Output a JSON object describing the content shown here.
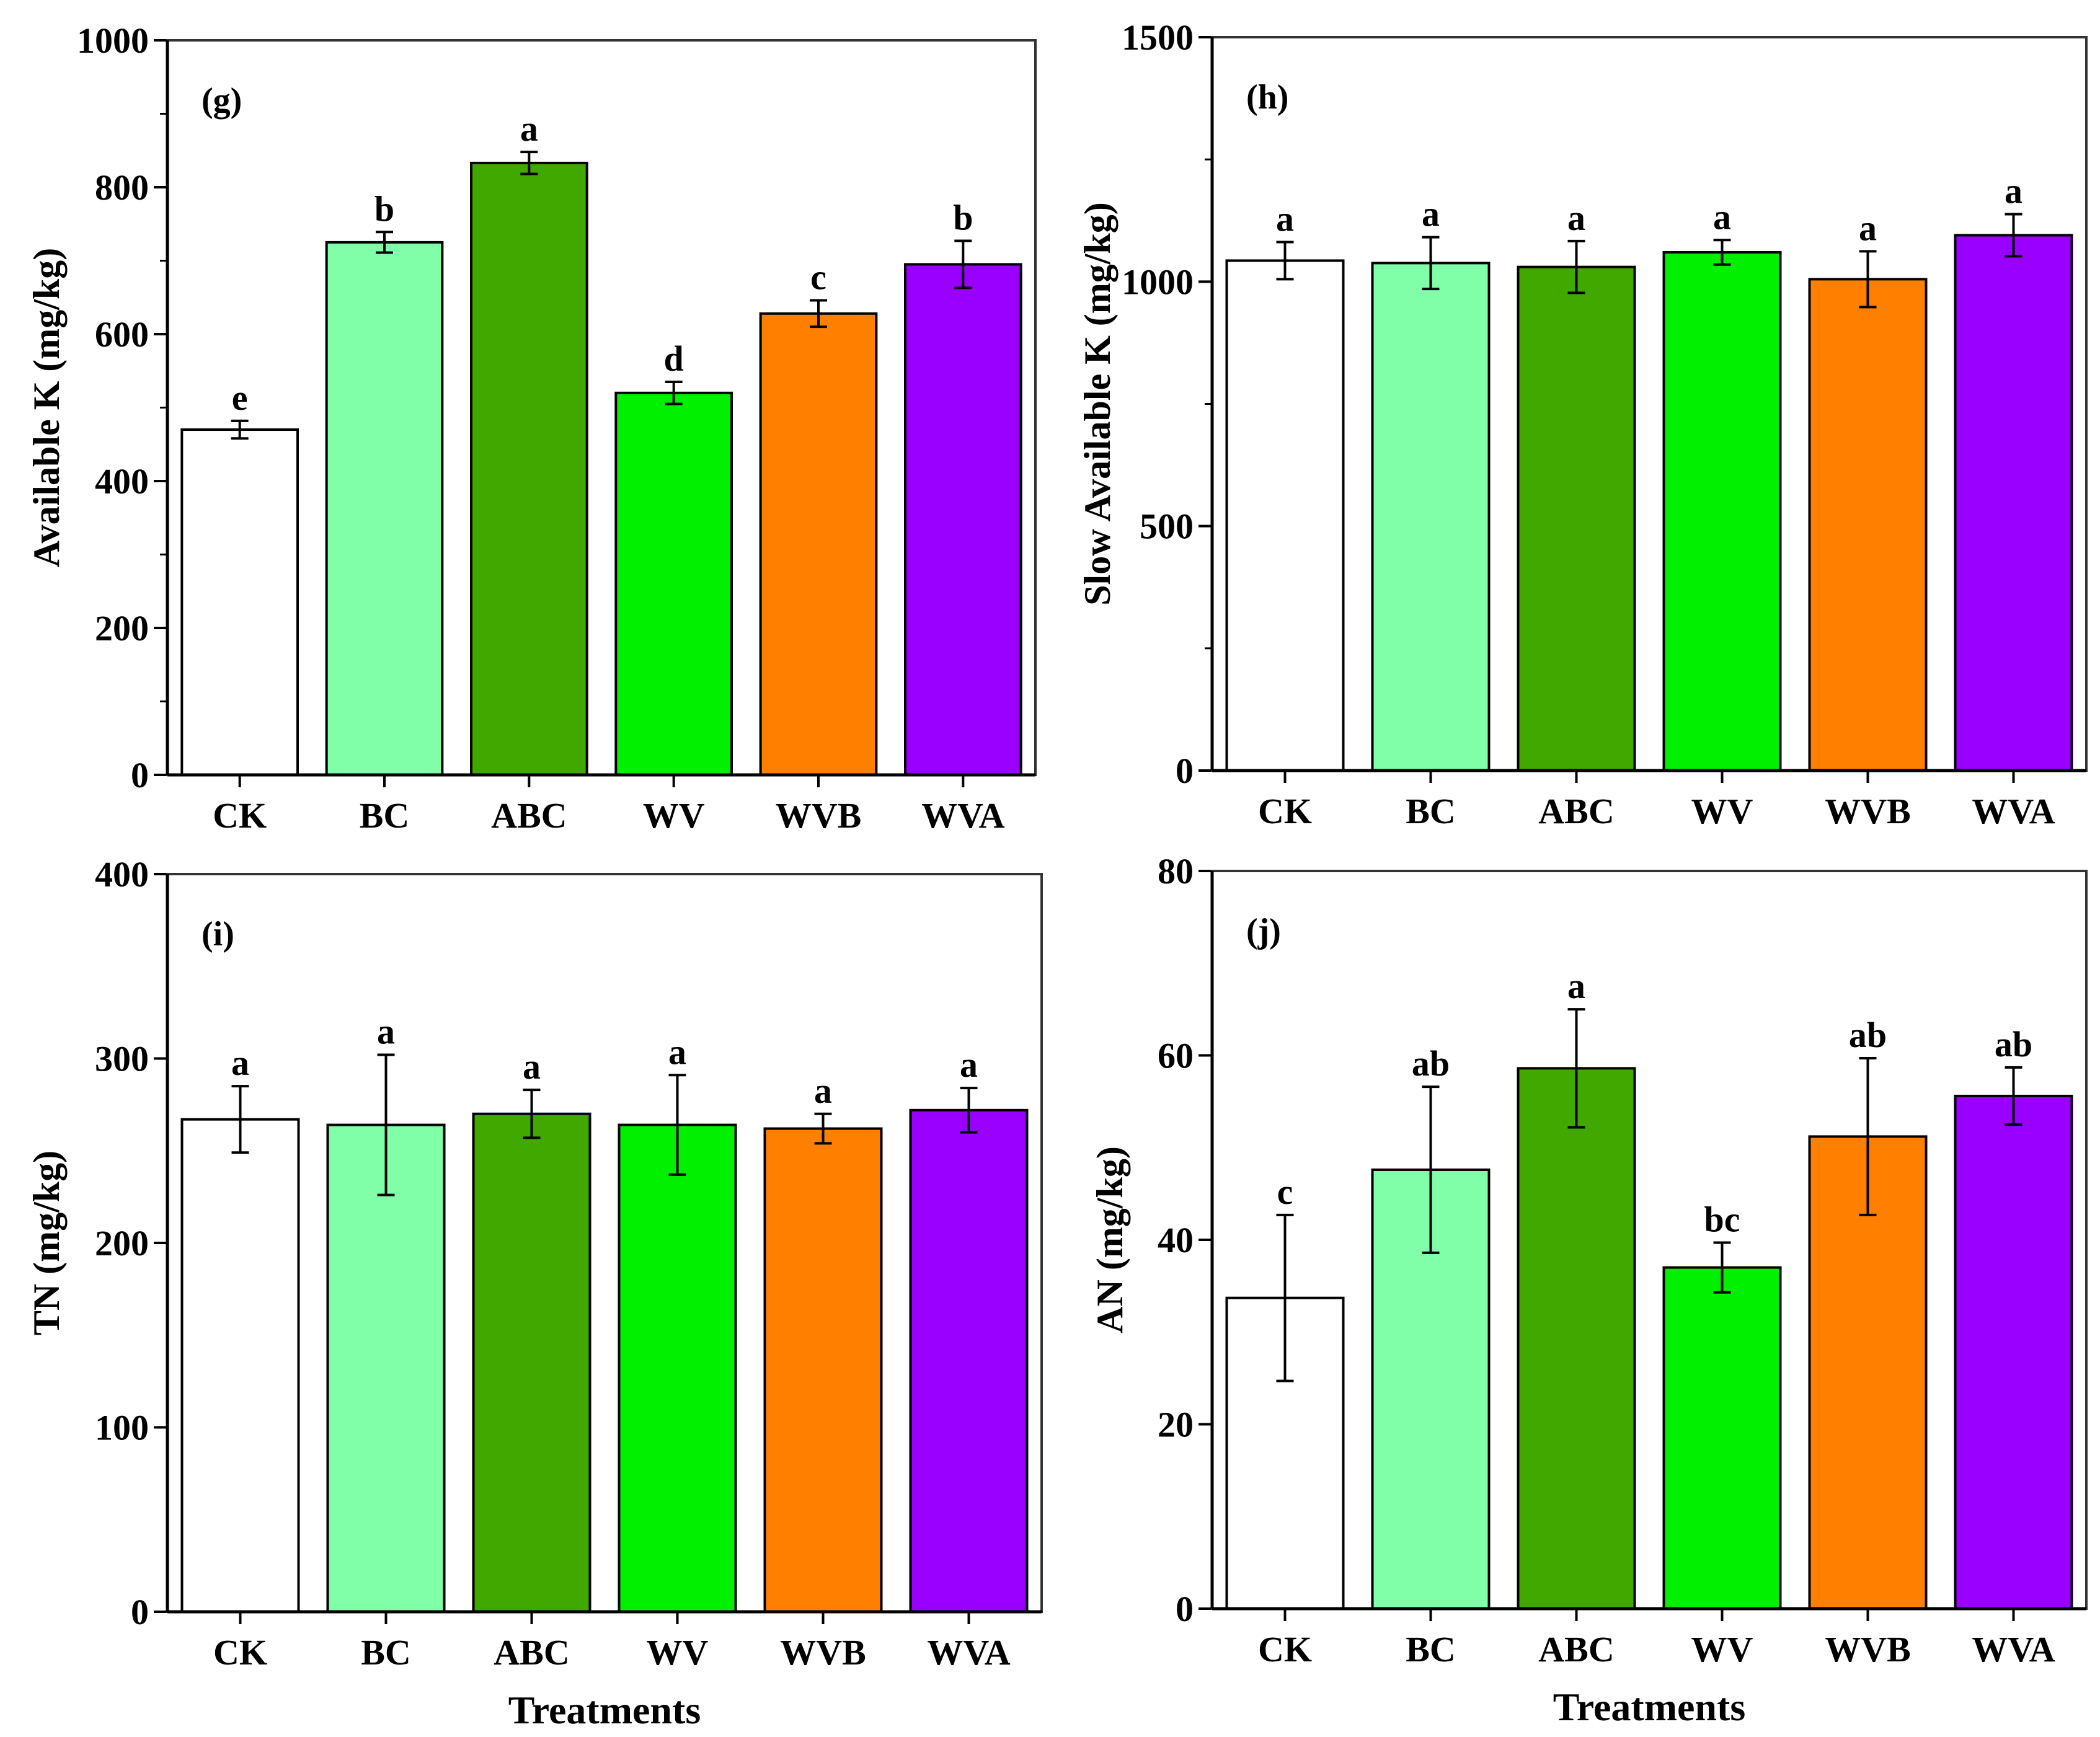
{
  "figure": {
    "x_title": "Treatments"
  },
  "chart_data": [
    {
      "type": "bar",
      "panel": "(g)",
      "ylabel": "Available K (mg/kg)",
      "xlabel": "",
      "ylim": [
        0,
        1000
      ],
      "yticks": [
        0,
        200,
        400,
        600,
        800,
        1000
      ],
      "minor_ticks": true,
      "categories": [
        "CK",
        "BC",
        "ABC",
        "WV",
        "WVB",
        "WVA"
      ],
      "values": [
        470,
        725,
        833,
        520,
        628,
        695
      ],
      "errors": [
        12,
        14,
        15,
        15,
        18,
        32
      ],
      "significance": [
        "e",
        "b",
        "a",
        "d",
        "c",
        "b"
      ],
      "colors": [
        "#ffffff",
        "#80ffa8",
        "#41a800",
        "#00f000",
        "#ff8000",
        "#9900ff"
      ]
    },
    {
      "type": "bar",
      "panel": "(h)",
      "ylabel": "Slow Available K (mg/kg)",
      "xlabel": "",
      "ylim": [
        0,
        1500
      ],
      "yticks": [
        0,
        500,
        1000,
        1500
      ],
      "minor_ticks": true,
      "categories": [
        "CK",
        "BC",
        "ABC",
        "WV",
        "WVB",
        "WVA"
      ],
      "values": [
        1043,
        1038,
        1030,
        1060,
        1005,
        1095
      ],
      "errors": [
        38,
        53,
        53,
        25,
        57,
        43
      ],
      "significance": [
        "a",
        "a",
        "a",
        "a",
        "a",
        "a"
      ],
      "colors": [
        "#ffffff",
        "#80ffa8",
        "#41a800",
        "#00f000",
        "#ff8000",
        "#9900ff"
      ]
    },
    {
      "type": "bar",
      "panel": "(i)",
      "ylabel": "TN (mg/kg)",
      "xlabel": "Treatments",
      "ylim": [
        0,
        400
      ],
      "yticks": [
        0,
        100,
        200,
        300,
        400
      ],
      "minor_ticks": false,
      "categories": [
        "CK",
        "BC",
        "ABC",
        "WV",
        "WVB",
        "WVA"
      ],
      "values": [
        267,
        264,
        270,
        264,
        262,
        272
      ],
      "errors": [
        18,
        38,
        13,
        27,
        8,
        12
      ],
      "significance": [
        "a",
        "a",
        "a",
        "a",
        "a",
        "a"
      ],
      "colors": [
        "#ffffff",
        "#80ffa8",
        "#41a800",
        "#00f000",
        "#ff8000",
        "#9900ff"
      ]
    },
    {
      "type": "bar",
      "panel": "(j)",
      "ylabel": "AN (mg/kg)",
      "xlabel": "Treatments",
      "ylim": [
        0,
        80
      ],
      "yticks": [
        0,
        20,
        40,
        60,
        80
      ],
      "minor_ticks": false,
      "categories": [
        "CK",
        "BC",
        "ABC",
        "WV",
        "WVB",
        "WVA"
      ],
      "values": [
        33.7,
        47.6,
        58.6,
        37.0,
        51.2,
        55.6
      ],
      "errors": [
        9.0,
        9.0,
        6.4,
        2.7,
        8.5,
        3.1
      ],
      "significance": [
        "c",
        "ab",
        "a",
        "bc",
        "ab",
        "ab"
      ],
      "colors": [
        "#ffffff",
        "#80ffa8",
        "#41a800",
        "#00f000",
        "#ff8000",
        "#9900ff"
      ]
    }
  ]
}
